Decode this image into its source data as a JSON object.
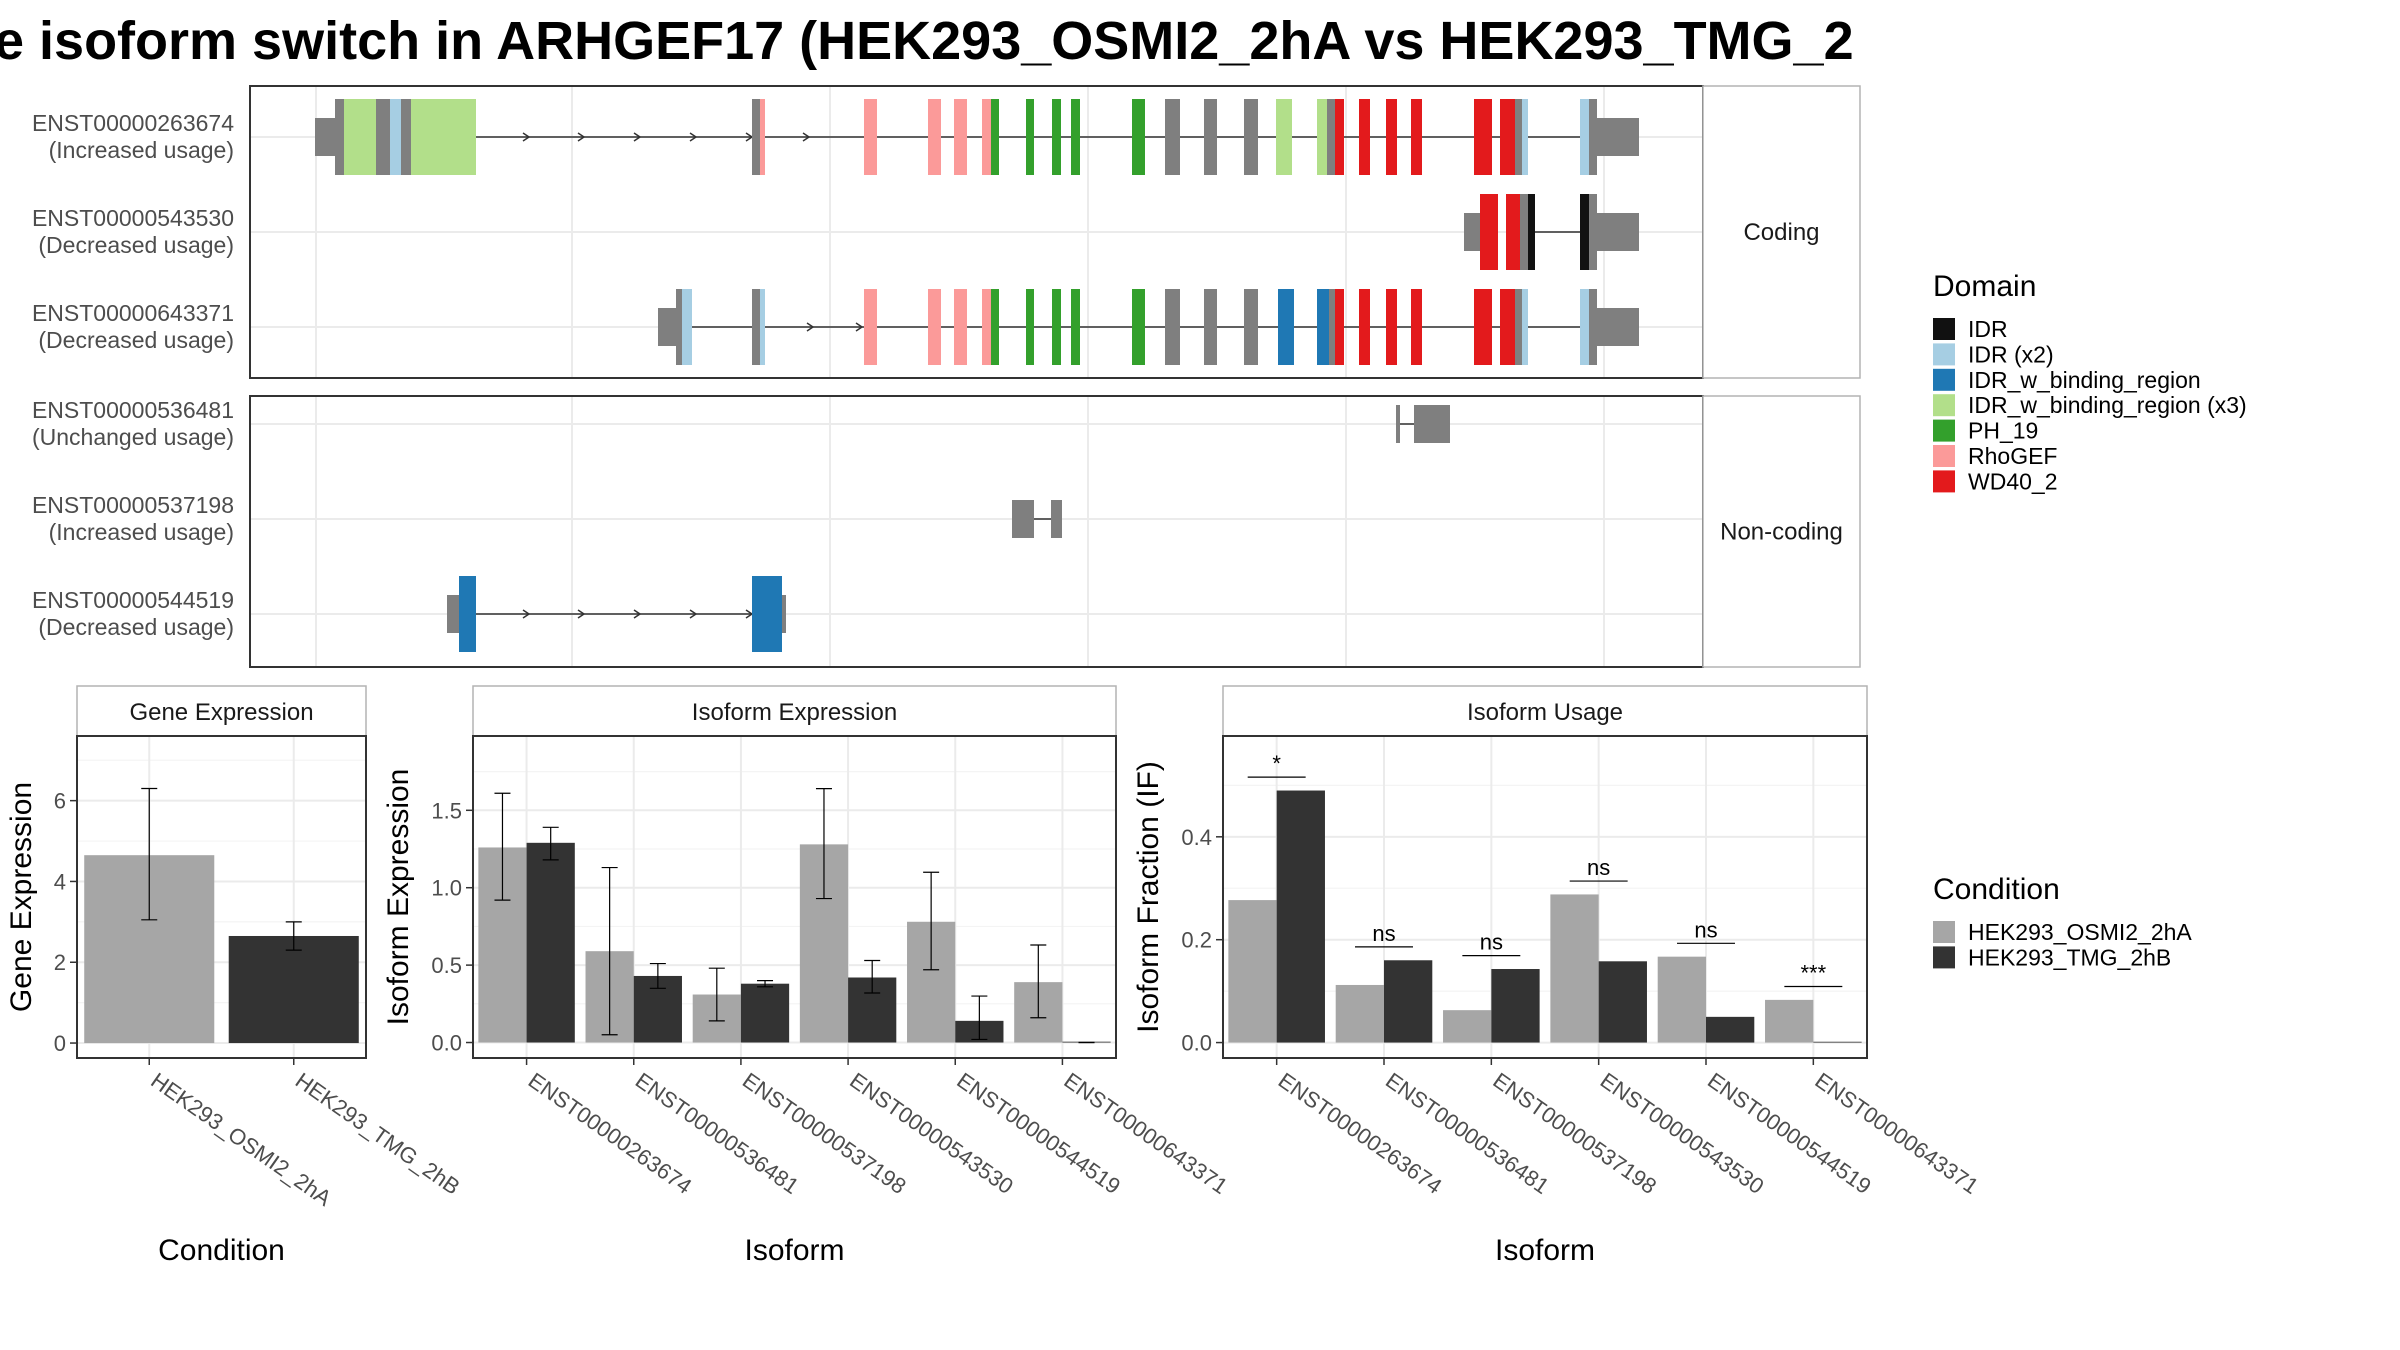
{
  "title": "e isoform switch in ARHGEF17 (HEK293_OSMI2_2hA vs HEK293_TMG_2",
  "colors": {
    "IDR": "#111111",
    "IDR (x2)": "#a6cee3",
    "IDR_w_binding_region": "#1f78b4",
    "IDR_w_binding_region (x3)": "#b2df8a",
    "PH_19": "#33a02c",
    "RhoGEF": "#fb9a99",
    "WD40_2": "#e31a1c",
    "exon": "#7f7f7f",
    "cond1": "#a6a6a6",
    "cond2": "#333333"
  },
  "structure": {
    "coding_label": "Coding",
    "noncoding_label": "Non-coding",
    "coding": [
      {
        "id": "ENST00000263674",
        "usage": "(Increased usage)"
      },
      {
        "id": "ENST00000543530",
        "usage": "(Decreased usage)"
      },
      {
        "id": "ENST00000643371",
        "usage": "(Decreased usage)"
      }
    ],
    "noncoding": [
      {
        "id": "ENST00000536481",
        "usage": "(Unchanged usage)"
      },
      {
        "id": "ENST00000537198",
        "usage": "(Increased usage)"
      },
      {
        "id": "ENST00000544519",
        "usage": "(Decreased usage)"
      }
    ]
  },
  "legend_domain": {
    "title": "Domain",
    "items": [
      "IDR",
      "IDR (x2)",
      "IDR_w_binding_region",
      "IDR_w_binding_region (x3)",
      "PH_19",
      "RhoGEF",
      "WD40_2"
    ]
  },
  "legend_condition": {
    "title": "Condition",
    "items": [
      "HEK293_OSMI2_2hA",
      "HEK293_TMG_2hB"
    ]
  },
  "chart_data": [
    {
      "type": "bar",
      "title": "Gene Expression",
      "xlabel": "Condition",
      "ylabel": "Gene Expression",
      "categories": [
        "HEK293_OSMI2_2hA",
        "HEK293_TMG_2hB"
      ],
      "values": [
        4.65,
        2.65
      ],
      "err_low": [
        3.05,
        2.3
      ],
      "err_high": [
        6.3,
        3.0
      ],
      "ylim": [
        -0.37,
        7.6
      ],
      "yticks": [
        0,
        2,
        4,
        6
      ]
    },
    {
      "type": "bar",
      "title": "Isoform Expression",
      "xlabel": "Isoform",
      "ylabel": "Isoform Expression",
      "categories": [
        "ENST00000263674",
        "ENST00000536481",
        "ENST00000537198",
        "ENST00000543530",
        "ENST00000544519",
        "ENST00000643371"
      ],
      "series": [
        {
          "name": "HEK293_OSMI2_2hA",
          "values": [
            1.26,
            0.59,
            0.31,
            1.28,
            0.78,
            0.39
          ],
          "err_low": [
            0.92,
            0.05,
            0.14,
            0.93,
            0.47,
            0.16
          ],
          "err_high": [
            1.61,
            1.13,
            0.48,
            1.64,
            1.1,
            0.63
          ]
        },
        {
          "name": "HEK293_TMG_2hB",
          "values": [
            1.29,
            0.43,
            0.38,
            0.42,
            0.14,
            0.0
          ],
          "err_low": [
            1.18,
            0.35,
            0.36,
            0.32,
            0.02,
            0.0
          ],
          "err_high": [
            1.39,
            0.51,
            0.4,
            0.53,
            0.3,
            0.0
          ]
        }
      ],
      "ylim": [
        -0.1,
        1.98
      ],
      "yticks": [
        0.0,
        0.5,
        1.0,
        1.5
      ]
    },
    {
      "type": "bar",
      "title": "Isoform Usage",
      "xlabel": "Isoform",
      "ylabel": "Isoform Fraction (IF)",
      "categories": [
        "ENST00000263674",
        "ENST00000536481",
        "ENST00000537198",
        "ENST00000543530",
        "ENST00000544519",
        "ENST00000643371"
      ],
      "series": [
        {
          "name": "HEK293_OSMI2_2hA",
          "values": [
            0.277,
            0.112,
            0.063,
            0.288,
            0.167,
            0.083
          ]
        },
        {
          "name": "HEK293_TMG_2hB",
          "values": [
            0.49,
            0.16,
            0.143,
            0.158,
            0.05,
            0.0
          ]
        }
      ],
      "significance": [
        "*",
        "ns",
        "ns",
        "ns",
        "ns",
        "***"
      ],
      "sig_y": [
        0.516,
        0.186,
        0.169,
        0.314,
        0.193,
        0.109
      ],
      "ylim": [
        -0.03,
        0.596
      ],
      "yticks": [
        0.0,
        0.2,
        0.4
      ]
    }
  ]
}
